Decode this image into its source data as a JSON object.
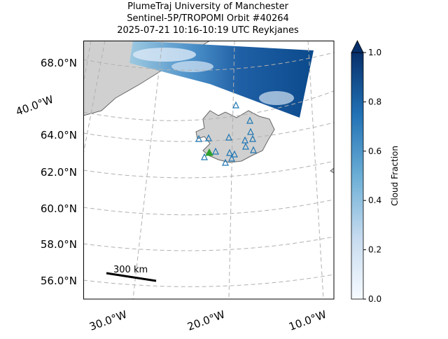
{
  "title": [
    "PlumeTraj    University of Manchester",
    "Sentinel-5P/TROPOMI Orbit #40264",
    "2025-07-21   10:16-10:19 UTC   Reykjanes"
  ],
  "map": {
    "lat_labels": [
      "68.0°N",
      "64.0°N",
      "62.0°N",
      "60.0°N",
      "58.0°N",
      "56.0°N"
    ],
    "lon_labels": [
      "40.0°W",
      "30.0°W",
      "20.0°W",
      "10.0°W"
    ],
    "scale_bar": "300 km"
  },
  "colorbar": {
    "label": "Cloud Fraction",
    "lim": [
      0,
      1
    ],
    "ticks": [
      {
        "value": 0,
        "label": "0.0"
      },
      0.2,
      0.4,
      0.6,
      0.8,
      {
        "value": 1,
        "label": "1.0"
      }
    ]
  }
}
